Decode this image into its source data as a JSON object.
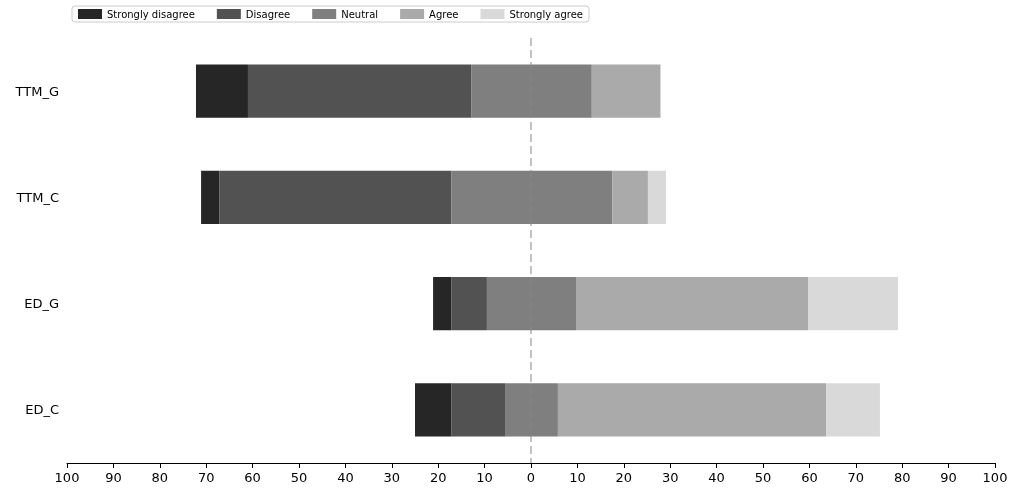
{
  "chart_data": {
    "type": "bar",
    "orientation": "horizontal",
    "categories": [
      "TTM_G",
      "TTM_C",
      "ED_G",
      "ED_C"
    ],
    "series": [
      {
        "name": "Strongly disagree",
        "color": "#262626",
        "base": [
          -72.2,
          -71.1,
          -21.1,
          -25.0
        ],
        "values": [
          11.2,
          3.9,
          3.9,
          7.8
        ]
      },
      {
        "name": "Disagree",
        "color": "#525252",
        "base": [
          -61.0,
          -67.2,
          -17.2,
          -17.2
        ],
        "values": [
          48.1,
          50.0,
          7.7,
          11.6
        ]
      },
      {
        "name": "Neutral",
        "color": "#7f7f7f",
        "base": [
          -12.9,
          -17.2,
          -9.5,
          -5.6
        ],
        "values": [
          26.0,
          34.7,
          19.2,
          11.4
        ]
      },
      {
        "name": "Agree",
        "color": "#aaaaaa",
        "base": [
          13.1,
          17.5,
          9.7,
          5.8
        ],
        "values": [
          14.8,
          7.7,
          50.0,
          57.8
        ]
      },
      {
        "name": "Strongly agree",
        "color": "#d9d9d9",
        "base": [
          null,
          25.2,
          59.7,
          63.6
        ],
        "values": [
          null,
          3.9,
          19.4,
          11.6
        ]
      }
    ],
    "xlim": [
      -100,
      100
    ],
    "xticks": [
      {
        "value": -100,
        "label": "100"
      },
      {
        "value": -90,
        "label": "90"
      },
      {
        "value": -80,
        "label": "80"
      },
      {
        "value": -70,
        "label": "70"
      },
      {
        "value": -60,
        "label": "60"
      },
      {
        "value": -50,
        "label": "50"
      },
      {
        "value": -40,
        "label": "40"
      },
      {
        "value": -30,
        "label": "30"
      },
      {
        "value": -20,
        "label": "20"
      },
      {
        "value": -10,
        "label": "10"
      },
      0,
      10,
      20,
      30,
      40,
      50,
      60,
      70,
      80,
      90,
      100
    ],
    "ref_lines": [
      {
        "axis": "x",
        "value": 0,
        "color": "#888888",
        "line_style": "dashed"
      }
    ],
    "legend": "top left"
  }
}
